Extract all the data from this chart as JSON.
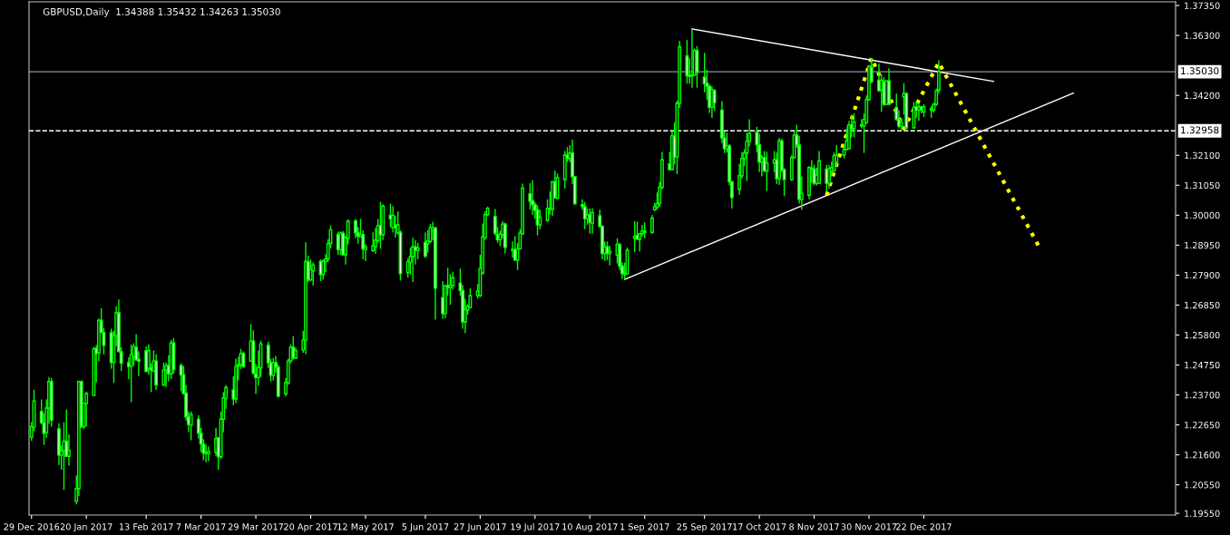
{
  "chart_data": {
    "type": "candlestick",
    "title": "GBPUSD,Daily  1.34388 1.35432 1.34263 1.35030",
    "color": "#00ff00",
    "x": [
      "2016-12-29",
      "2016-12-30",
      "2017-01-02",
      "2017-01-03",
      "2017-01-04",
      "2017-01-05",
      "2017-01-06",
      "2017-01-09",
      "2017-01-10",
      "2017-01-11",
      "2017-01-12",
      "2017-01-13",
      "2017-01-16",
      "2017-01-17",
      "2017-01-18",
      "2017-01-19",
      "2017-01-20",
      "2017-01-23",
      "2017-01-24",
      "2017-01-25",
      "2017-01-26",
      "2017-01-27",
      "2017-01-30",
      "2017-01-31",
      "2017-02-01",
      "2017-02-02",
      "2017-02-03",
      "2017-02-06",
      "2017-02-07",
      "2017-02-08",
      "2017-02-09",
      "2017-02-10",
      "2017-02-13",
      "2017-02-14",
      "2017-02-15",
      "2017-02-16",
      "2017-02-17",
      "2017-02-20",
      "2017-02-21",
      "2017-02-22",
      "2017-02-23",
      "2017-02-24",
      "2017-02-27",
      "2017-02-28",
      "2017-03-01",
      "2017-03-02",
      "2017-03-03",
      "2017-03-06",
      "2017-03-07",
      "2017-03-08",
      "2017-03-09",
      "2017-03-10",
      "2017-03-13",
      "2017-03-14",
      "2017-03-15",
      "2017-03-16",
      "2017-03-17",
      "2017-03-20",
      "2017-03-21",
      "2017-03-22",
      "2017-03-23",
      "2017-03-24",
      "2017-03-27",
      "2017-03-28",
      "2017-03-29",
      "2017-03-30",
      "2017-03-31",
      "2017-04-03",
      "2017-04-04",
      "2017-04-05",
      "2017-04-06",
      "2017-04-07",
      "2017-04-10",
      "2017-04-11",
      "2017-04-12",
      "2017-04-13",
      "2017-04-14",
      "2017-04-17",
      "2017-04-18",
      "2017-04-19",
      "2017-04-20",
      "2017-04-21",
      "2017-04-24",
      "2017-04-25",
      "2017-04-26",
      "2017-04-27",
      "2017-04-28",
      "2017-05-01",
      "2017-05-02",
      "2017-05-03",
      "2017-05-04",
      "2017-05-05",
      "2017-05-08",
      "2017-05-09",
      "2017-05-10",
      "2017-05-11",
      "2017-05-12",
      "2017-05-15",
      "2017-05-16",
      "2017-05-17",
      "2017-05-18",
      "2017-05-19",
      "2017-05-22",
      "2017-05-23",
      "2017-05-24",
      "2017-05-25",
      "2017-05-26",
      "2017-05-29",
      "2017-05-30",
      "2017-05-31",
      "2017-06-01",
      "2017-06-02",
      "2017-06-05",
      "2017-06-06",
      "2017-06-07",
      "2017-06-08",
      "2017-06-09",
      "2017-06-12",
      "2017-06-13",
      "2017-06-14",
      "2017-06-15",
      "2017-06-16",
      "2017-06-19",
      "2017-06-20",
      "2017-06-21",
      "2017-06-22",
      "2017-06-23",
      "2017-06-26",
      "2017-06-27",
      "2017-06-28",
      "2017-06-29",
      "2017-06-30",
      "2017-07-03",
      "2017-07-04",
      "2017-07-05",
      "2017-07-06",
      "2017-07-07",
      "2017-07-10",
      "2017-07-11",
      "2017-07-12",
      "2017-07-13",
      "2017-07-14",
      "2017-07-17",
      "2017-07-18",
      "2017-07-19",
      "2017-07-20",
      "2017-07-21",
      "2017-07-24",
      "2017-07-25",
      "2017-07-26",
      "2017-07-27",
      "2017-07-28",
      "2017-07-31",
      "2017-08-01",
      "2017-08-02",
      "2017-08-03",
      "2017-08-04",
      "2017-08-07",
      "2017-08-08",
      "2017-08-09",
      "2017-08-10",
      "2017-08-11",
      "2017-08-14",
      "2017-08-15",
      "2017-08-16",
      "2017-08-17",
      "2017-08-18",
      "2017-08-21",
      "2017-08-22",
      "2017-08-23",
      "2017-08-24",
      "2017-08-25",
      "2017-08-28",
      "2017-08-29",
      "2017-08-30",
      "2017-08-31",
      "2017-09-01",
      "2017-09-04",
      "2017-09-05",
      "2017-09-06",
      "2017-09-07",
      "2017-09-08",
      "2017-09-11",
      "2017-09-12",
      "2017-09-13",
      "2017-09-14",
      "2017-09-15",
      "2017-09-18",
      "2017-09-19",
      "2017-09-20",
      "2017-09-21",
      "2017-09-22",
      "2017-09-25",
      "2017-09-26",
      "2017-09-27",
      "2017-09-28",
      "2017-09-29",
      "2017-10-02",
      "2017-10-03",
      "2017-10-04",
      "2017-10-05",
      "2017-10-06",
      "2017-10-09",
      "2017-10-10",
      "2017-10-11",
      "2017-10-12",
      "2017-10-13",
      "2017-10-16",
      "2017-10-17",
      "2017-10-18",
      "2017-10-19",
      "2017-10-20",
      "2017-10-23",
      "2017-10-24",
      "2017-10-25",
      "2017-10-26",
      "2017-10-27",
      "2017-10-30",
      "2017-10-31",
      "2017-11-01",
      "2017-11-02",
      "2017-11-03",
      "2017-11-06",
      "2017-11-07",
      "2017-11-08",
      "2017-11-09",
      "2017-11-10",
      "2017-11-13",
      "2017-11-14",
      "2017-11-15",
      "2017-11-16",
      "2017-11-17",
      "2017-11-20",
      "2017-11-21",
      "2017-11-22",
      "2017-11-23",
      "2017-11-24",
      "2017-11-27",
      "2017-11-28",
      "2017-11-29",
      "2017-11-30",
      "2017-12-01",
      "2017-12-04",
      "2017-12-05",
      "2017-12-06",
      "2017-12-07",
      "2017-12-08",
      "2017-12-11",
      "2017-12-12",
      "2017-12-13",
      "2017-12-14",
      "2017-12-15",
      "2017-12-18",
      "2017-12-19",
      "2017-12-20",
      "2017-12-21",
      "2017-12-22",
      "2017-12-25",
      "2017-12-26",
      "2017-12-27",
      "2017-12-28"
    ],
    "ohlc": [
      [
        1.2222,
        1.2275,
        1.2209,
        1.2259
      ],
      [
        1.2257,
        1.2388,
        1.2243,
        1.2349
      ],
      [
        1.2312,
        1.2354,
        1.2267,
        1.2273
      ],
      [
        1.2273,
        1.2306,
        1.2195,
        1.2236
      ],
      [
        1.2238,
        1.2354,
        1.2219,
        1.2324
      ],
      [
        1.2324,
        1.2433,
        1.2269,
        1.2417
      ],
      [
        1.2417,
        1.243,
        1.2259,
        1.2282
      ],
      [
        1.2251,
        1.2271,
        1.2124,
        1.2159
      ],
      [
        1.2159,
        1.2192,
        1.2108,
        1.2174
      ],
      [
        1.2174,
        1.2275,
        1.2037,
        1.2208
      ],
      [
        1.2208,
        1.2319,
        1.2153,
        1.2155
      ],
      [
        1.2155,
        1.2232,
        1.2122,
        1.2176
      ],
      [
        1.1997,
        1.2088,
        1.1986,
        1.2042
      ],
      [
        1.2042,
        1.242,
        1.2016,
        1.2417
      ],
      [
        1.2417,
        1.242,
        1.2254,
        1.2259
      ],
      [
        1.2259,
        1.2343,
        1.225,
        1.2341
      ],
      [
        1.234,
        1.2382,
        1.2259,
        1.2375
      ],
      [
        1.2368,
        1.2539,
        1.2366,
        1.2531
      ],
      [
        1.2533,
        1.2546,
        1.2415,
        1.2515
      ],
      [
        1.2518,
        1.2639,
        1.2488,
        1.2631
      ],
      [
        1.2632,
        1.2674,
        1.2586,
        1.2589
      ],
      [
        1.2589,
        1.2604,
        1.2512,
        1.2544
      ],
      [
        1.2588,
        1.2602,
        1.2462,
        1.2484
      ],
      [
        1.2484,
        1.2595,
        1.2412,
        1.2578
      ],
      [
        1.2578,
        1.2681,
        1.2541,
        1.2658
      ],
      [
        1.2658,
        1.2705,
        1.2518,
        1.2523
      ],
      [
        1.2521,
        1.2537,
        1.2454,
        1.2481
      ],
      [
        1.2483,
        1.2502,
        1.2425,
        1.247
      ],
      [
        1.247,
        1.2547,
        1.2345,
        1.2512
      ],
      [
        1.2504,
        1.2551,
        1.2472,
        1.2539
      ],
      [
        1.2537,
        1.2583,
        1.2489,
        1.2493
      ],
      [
        1.2495,
        1.2523,
        1.2436,
        1.2488
      ],
      [
        1.2525,
        1.2541,
        1.245,
        1.2453
      ],
      [
        1.2463,
        1.2547,
        1.244,
        1.2525
      ],
      [
        1.2465,
        1.2481,
        1.238,
        1.2457
      ],
      [
        1.2454,
        1.2526,
        1.2452,
        1.2489
      ],
      [
        1.2489,
        1.2512,
        1.2388,
        1.2405
      ],
      [
        1.2405,
        1.2484,
        1.2401,
        1.2457
      ],
      [
        1.2457,
        1.2484,
        1.2398,
        1.2473
      ],
      [
        1.2473,
        1.2509,
        1.2417,
        1.2444
      ],
      [
        1.2444,
        1.2563,
        1.2426,
        1.2552
      ],
      [
        1.2552,
        1.257,
        1.2444,
        1.2459
      ],
      [
        1.2473,
        1.2481,
        1.2383,
        1.244
      ],
      [
        1.2441,
        1.2472,
        1.2373,
        1.2375
      ],
      [
        1.2377,
        1.2405,
        1.228,
        1.2293
      ],
      [
        1.2293,
        1.2312,
        1.224,
        1.2267
      ],
      [
        1.2264,
        1.2312,
        1.2211,
        1.2301
      ],
      [
        1.2285,
        1.2299,
        1.2217,
        1.2236
      ],
      [
        1.2236,
        1.2254,
        1.2169,
        1.2198
      ],
      [
        1.2198,
        1.2215,
        1.2141,
        1.2166
      ],
      [
        1.2168,
        1.2196,
        1.2134,
        1.2164
      ],
      [
        1.2164,
        1.219,
        1.2138,
        1.2172
      ],
      [
        1.2169,
        1.2254,
        1.2156,
        1.2217
      ],
      [
        1.222,
        1.2222,
        1.2108,
        1.2153
      ],
      [
        1.2153,
        1.2312,
        1.2146,
        1.2285
      ],
      [
        1.2285,
        1.238,
        1.224,
        1.2359
      ],
      [
        1.2357,
        1.2405,
        1.2322,
        1.2396
      ],
      [
        1.2388,
        1.2436,
        1.2333,
        1.2356
      ],
      [
        1.2356,
        1.2497,
        1.2341,
        1.247
      ],
      [
        1.2472,
        1.2504,
        1.2421,
        1.2476
      ],
      [
        1.2476,
        1.2531,
        1.246,
        1.2515
      ],
      [
        1.2515,
        1.2523,
        1.2465,
        1.247
      ],
      [
        1.2488,
        1.2618,
        1.2486,
        1.2559
      ],
      [
        1.2559,
        1.2597,
        1.2441,
        1.2447
      ],
      [
        1.2445,
        1.2478,
        1.2373,
        1.2431
      ],
      [
        1.2431,
        1.2525,
        1.2402,
        1.2467
      ],
      [
        1.2465,
        1.256,
        1.2433,
        1.2549
      ],
      [
        1.2544,
        1.2557,
        1.2465,
        1.2483
      ],
      [
        1.2483,
        1.2497,
        1.2417,
        1.2439
      ],
      [
        1.2439,
        1.25,
        1.2421,
        1.2483
      ],
      [
        1.2483,
        1.2507,
        1.2449,
        1.2467
      ],
      [
        1.2467,
        1.2476,
        1.2362,
        1.2365
      ],
      [
        1.2374,
        1.243,
        1.2365,
        1.2414
      ],
      [
        1.2412,
        1.2497,
        1.2405,
        1.2489
      ],
      [
        1.2489,
        1.2547,
        1.2481,
        1.2537
      ],
      [
        1.2537,
        1.2576,
        1.2493,
        1.25
      ],
      [
        1.2499,
        1.2536,
        1.2497,
        1.2525
      ],
      [
        1.2528,
        1.2595,
        1.2518,
        1.2562
      ],
      [
        1.2562,
        1.2905,
        1.2512,
        1.2838
      ],
      [
        1.2837,
        1.2858,
        1.2766,
        1.2774
      ],
      [
        1.2774,
        1.2845,
        1.2768,
        1.281
      ],
      [
        1.2805,
        1.2835,
        1.2753,
        1.2826
      ],
      [
        1.2838,
        1.2845,
        1.2769,
        1.2792
      ],
      [
        1.2792,
        1.2845,
        1.2774,
        1.2838
      ],
      [
        1.2837,
        1.2863,
        1.2801,
        1.2847
      ],
      [
        1.2847,
        1.2916,
        1.2837,
        1.2901
      ],
      [
        1.2901,
        1.2964,
        1.2884,
        1.2949
      ],
      [
        1.2932,
        1.2943,
        1.2861,
        1.288
      ],
      [
        1.288,
        1.2943,
        1.2861,
        1.2937
      ],
      [
        1.2937,
        1.2945,
        1.2858,
        1.2861
      ],
      [
        1.2861,
        1.2929,
        1.2827,
        1.2921
      ],
      [
        1.2919,
        1.2985,
        1.2898,
        1.2979
      ],
      [
        1.298,
        1.2987,
        1.2919,
        1.2938
      ],
      [
        1.2938,
        1.2959,
        1.29,
        1.2927
      ],
      [
        1.2924,
        1.2987,
        1.2921,
        1.2932
      ],
      [
        1.2932,
        1.2947,
        1.2845,
        1.2882
      ],
      [
        1.288,
        1.2898,
        1.2839,
        1.2889
      ],
      [
        1.2876,
        1.294,
        1.2871,
        1.2892
      ],
      [
        1.2889,
        1.2956,
        1.2864,
        1.2913
      ],
      [
        1.2911,
        1.2987,
        1.2903,
        1.2964
      ],
      [
        1.2964,
        1.3047,
        1.2882,
        1.2931
      ],
      [
        1.2931,
        1.3038,
        1.2913,
        1.3032
      ],
      [
        1.3,
        1.304,
        1.2958,
        1.2987
      ],
      [
        1.2956,
        1.3032,
        1.294,
        1.3
      ],
      [
        1.2966,
        1.2998,
        1.2922,
        1.2956
      ],
      [
        1.2938,
        1.3013,
        1.2932,
        1.2966
      ],
      [
        1.294,
        1.2947,
        1.2771,
        1.2795
      ],
      [
        1.2799,
        1.2848,
        1.2781,
        1.2837
      ],
      [
        1.2834,
        1.2887,
        1.2792,
        1.2855
      ],
      [
        1.2855,
        1.2921,
        1.2766,
        1.2889
      ],
      [
        1.2889,
        1.2913,
        1.2827,
        1.2876
      ],
      [
        1.2876,
        1.2903,
        1.2845,
        1.2885
      ],
      [
        1.2905,
        1.294,
        1.285,
        1.2857
      ],
      [
        1.29,
        1.2947,
        1.2869,
        1.291
      ],
      [
        1.2908,
        1.2969,
        1.2903,
        1.2956
      ],
      [
        1.2947,
        1.2977,
        1.2913,
        1.2956
      ],
      [
        1.2956,
        1.2958,
        1.2634,
        1.2744
      ],
      [
        1.2711,
        1.2769,
        1.2637,
        1.2655
      ],
      [
        1.2655,
        1.2755,
        1.2639,
        1.2753
      ],
      [
        1.2753,
        1.2816,
        1.2718,
        1.2747
      ],
      [
        1.2747,
        1.2794,
        1.2686,
        1.2755
      ],
      [
        1.2753,
        1.2802,
        1.2739,
        1.2781
      ],
      [
        1.2762,
        1.2813,
        1.2718,
        1.2736
      ],
      [
        1.2736,
        1.2755,
        1.2602,
        1.2626
      ],
      [
        1.2626,
        1.2707,
        1.2586,
        1.267
      ],
      [
        1.2668,
        1.2688,
        1.2651,
        1.2681
      ],
      [
        1.2676,
        1.2744,
        1.2673,
        1.2718
      ],
      [
        1.2718,
        1.2759,
        1.2707,
        1.2734
      ],
      [
        1.2718,
        1.2861,
        1.2713,
        1.2813
      ],
      [
        1.2797,
        1.2971,
        1.2792,
        1.2924
      ],
      [
        1.2922,
        1.3014,
        1.2914,
        1.3002
      ],
      [
        1.3002,
        1.303,
        1.2998,
        1.3024
      ],
      [
        1.2996,
        1.3022,
        1.2929,
        1.2937
      ],
      [
        1.2933,
        1.2959,
        1.2903,
        1.2914
      ],
      [
        1.2914,
        1.2945,
        1.2892,
        1.2933
      ],
      [
        1.2932,
        1.298,
        1.2919,
        1.2969
      ],
      [
        1.2969,
        1.2974,
        1.2866,
        1.2887
      ],
      [
        1.288,
        1.2908,
        1.2852,
        1.2877
      ],
      [
        1.288,
        1.2926,
        1.284,
        1.2843
      ],
      [
        1.2843,
        1.2903,
        1.2808,
        1.2882
      ],
      [
        1.2882,
        1.2951,
        1.288,
        1.2937
      ],
      [
        1.2935,
        1.3111,
        1.2932,
        1.3095
      ],
      [
        1.3075,
        1.3112,
        1.3019,
        1.3049
      ],
      [
        1.3051,
        1.3123,
        1.3,
        1.3037
      ],
      [
        1.3037,
        1.3046,
        1.2988,
        1.3017
      ],
      [
        1.3019,
        1.3035,
        1.2929,
        1.2966
      ],
      [
        1.2966,
        1.3019,
        1.2951,
        1.2993
      ],
      [
        1.2982,
        1.3056,
        1.2977,
        1.3024
      ],
      [
        1.3024,
        1.3083,
        1.3003,
        1.3021
      ],
      [
        1.3021,
        1.312,
        1.2998,
        1.3117
      ],
      [
        1.3117,
        1.3156,
        1.3059,
        1.3061
      ],
      [
        1.3059,
        1.3146,
        1.3056,
        1.3132
      ],
      [
        1.3125,
        1.3225,
        1.3093,
        1.3211
      ],
      [
        1.3211,
        1.3239,
        1.3186,
        1.3199
      ],
      [
        1.3199,
        1.3246,
        1.3186,
        1.3218
      ],
      [
        1.3218,
        1.3265,
        1.3109,
        1.3135
      ],
      [
        1.3135,
        1.3137,
        1.3038,
        1.304
      ],
      [
        1.3037,
        1.3056,
        1.3019,
        1.303
      ],
      [
        1.303,
        1.3046,
        1.2951,
        1.2988
      ],
      [
        1.2988,
        1.3024,
        1.2966,
        1.3001
      ],
      [
        1.3002,
        1.3024,
        1.2935,
        1.2975
      ],
      [
        1.2972,
        1.3024,
        1.2935,
        1.3009
      ],
      [
        1.2998,
        1.3019,
        1.2956,
        1.2961
      ],
      [
        1.2961,
        1.2966,
        1.2845,
        1.2866
      ],
      [
        1.2866,
        1.2908,
        1.284,
        1.2889
      ],
      [
        1.2889,
        1.2908,
        1.2842,
        1.2866
      ],
      [
        1.2866,
        1.2892,
        1.2824,
        1.2873
      ],
      [
        1.2861,
        1.2919,
        1.2831,
        1.2898
      ],
      [
        1.2896,
        1.2903,
        1.2808,
        1.2821
      ],
      [
        1.2822,
        1.2834,
        1.2776,
        1.2795
      ],
      [
        1.2792,
        1.2834,
        1.2776,
        1.2797
      ],
      [
        1.2795,
        1.2887,
        1.2792,
        1.2877
      ],
      [
        1.2919,
        1.2979,
        1.2871,
        1.2926
      ],
      [
        1.2929,
        1.2977,
        1.2914,
        1.2916
      ],
      [
        1.2916,
        1.2937,
        1.2873,
        1.2935
      ],
      [
        1.2935,
        1.2965,
        1.2925,
        1.2945
      ],
      [
        1.2945,
        1.2975,
        1.292,
        1.294
      ],
      [
        1.294,
        1.3,
        1.2935,
        1.299
      ],
      [
        1.3019,
        1.3043,
        1.3014,
        1.303
      ],
      [
        1.3028,
        1.308,
        1.3019,
        1.3041
      ],
      [
        1.3041,
        1.3117,
        1.303,
        1.3099
      ],
      [
        1.3097,
        1.3222,
        1.3091,
        1.3194
      ],
      [
        1.318,
        1.3222,
        1.3157,
        1.316
      ],
      [
        1.316,
        1.3294,
        1.3157,
        1.3278
      ],
      [
        1.3278,
        1.3326,
        1.3178,
        1.3204
      ],
      [
        1.3204,
        1.3402,
        1.3144,
        1.3392
      ],
      [
        1.3392,
        1.3611,
        1.3376,
        1.359
      ],
      [
        1.3558,
        1.3614,
        1.3461,
        1.3489
      ],
      [
        1.3491,
        1.355,
        1.3461,
        1.3486
      ],
      [
        1.3487,
        1.3653,
        1.3447,
        1.3492
      ],
      [
        1.3491,
        1.3584,
        1.3489,
        1.3577
      ],
      [
        1.3577,
        1.3593,
        1.3447,
        1.35
      ],
      [
        1.3484,
        1.3569,
        1.3431,
        1.3461
      ],
      [
        1.3463,
        1.351,
        1.3405,
        1.3452
      ],
      [
        1.3452,
        1.3458,
        1.3359,
        1.3378
      ],
      [
        1.3378,
        1.3452,
        1.3341,
        1.344
      ],
      [
        1.3437,
        1.3442,
        1.3366,
        1.3394
      ],
      [
        1.3368,
        1.34,
        1.3252,
        1.3271
      ],
      [
        1.3271,
        1.3294,
        1.3218,
        1.3234
      ],
      [
        1.3233,
        1.3289,
        1.322,
        1.3243
      ],
      [
        1.3243,
        1.3249,
        1.3104,
        1.3117
      ],
      [
        1.3117,
        1.312,
        1.3023,
        1.3062
      ],
      [
        1.3091,
        1.3181,
        1.3072,
        1.3139
      ],
      [
        1.3138,
        1.3222,
        1.3128,
        1.3199
      ],
      [
        1.3199,
        1.3231,
        1.3173,
        1.3218
      ],
      [
        1.3218,
        1.3289,
        1.312,
        1.3259
      ],
      [
        1.3259,
        1.3336,
        1.3241,
        1.3286
      ],
      [
        1.3291,
        1.331,
        1.322,
        1.3247
      ],
      [
        1.3247,
        1.3286,
        1.3151,
        1.3186
      ],
      [
        1.3186,
        1.3212,
        1.3136,
        1.3202
      ],
      [
        1.3202,
        1.3225,
        1.3151,
        1.3155
      ],
      [
        1.3155,
        1.3222,
        1.3085,
        1.3183
      ],
      [
        1.3183,
        1.3225,
        1.3151,
        1.3194
      ],
      [
        1.3194,
        1.322,
        1.3109,
        1.3128
      ],
      [
        1.3128,
        1.3271,
        1.3106,
        1.326
      ],
      [
        1.326,
        1.3268,
        1.3151,
        1.3157
      ],
      [
        1.3159,
        1.3165,
        1.3067,
        1.3125
      ],
      [
        1.3125,
        1.3212,
        1.312,
        1.3202
      ],
      [
        1.3202,
        1.3294,
        1.3199,
        1.3281
      ],
      [
        1.3281,
        1.3317,
        1.3236,
        1.3246
      ],
      [
        1.3246,
        1.3278,
        1.3041,
        1.3056
      ],
      [
        1.3056,
        1.3136,
        1.3019,
        1.3077
      ],
      [
        1.307,
        1.3172,
        1.3056,
        1.3167
      ],
      [
        1.3165,
        1.3193,
        1.3114,
        1.3161
      ],
      [
        1.3162,
        1.3177,
        1.3104,
        1.3112
      ],
      [
        1.3112,
        1.3167,
        1.3104,
        1.3141
      ],
      [
        1.3112,
        1.3225,
        1.3109,
        1.319
      ],
      [
        1.3162,
        1.3177,
        1.3082,
        1.3112
      ],
      [
        1.3112,
        1.3177,
        1.3093,
        1.3162
      ],
      [
        1.3154,
        1.3188,
        1.3135,
        1.3167
      ],
      [
        1.3156,
        1.322,
        1.3151,
        1.3209
      ],
      [
        1.3186,
        1.3246,
        1.3172,
        1.3211
      ],
      [
        1.3211,
        1.3251,
        1.3199,
        1.323
      ],
      [
        1.323,
        1.3304,
        1.3228,
        1.326
      ],
      [
        1.3233,
        1.3331,
        1.3232,
        1.3317
      ],
      [
        1.3317,
        1.3352,
        1.3273,
        1.3302
      ],
      [
        1.3304,
        1.3357,
        1.3273,
        1.3327
      ],
      [
        1.3317,
        1.3336,
        1.3304,
        1.3313
      ],
      [
        1.3313,
        1.3357,
        1.3218,
        1.3336
      ],
      [
        1.3325,
        1.342,
        1.332,
        1.3405
      ],
      [
        1.3405,
        1.3526,
        1.3401,
        1.3523
      ],
      [
        1.3519,
        1.3552,
        1.3463,
        1.3468
      ],
      [
        1.3473,
        1.3531,
        1.3433,
        1.3436
      ],
      [
        1.3439,
        1.3494,
        1.3362,
        1.3473
      ],
      [
        1.3468,
        1.3484,
        1.3383,
        1.3389
      ],
      [
        1.3389,
        1.3473,
        1.3387,
        1.3471
      ],
      [
        1.3471,
        1.3515,
        1.3387,
        1.3389
      ],
      [
        1.3378,
        1.3426,
        1.3331,
        1.3336
      ],
      [
        1.3336,
        1.3368,
        1.3304,
        1.3312
      ],
      [
        1.3312,
        1.3341,
        1.3299,
        1.3325
      ],
      [
        1.3415,
        1.3463,
        1.3352,
        1.3426
      ],
      [
        1.3426,
        1.3431,
        1.3299,
        1.3306
      ],
      [
        1.3306,
        1.3397,
        1.3304,
        1.3378
      ],
      [
        1.338,
        1.3399,
        1.3341,
        1.3368
      ],
      [
        1.3368,
        1.3394,
        1.3331,
        1.338
      ],
      [
        1.338,
        1.3383,
        1.3357,
        1.337
      ],
      [
        1.3362,
        1.3389,
        1.3344,
        1.338
      ],
      [
        1.3373,
        1.3383,
        1.3341,
        1.3368
      ],
      [
        1.3368,
        1.3394,
        1.3359,
        1.3389
      ],
      [
        1.3389,
        1.3444,
        1.3383,
        1.3436
      ],
      [
        1.34388,
        1.35432,
        1.34263,
        1.3503
      ]
    ],
    "series": [
      {
        "type": "line",
        "color": "#ffffff",
        "line_style": "solid",
        "x": [
          "2017-09-20",
          "2018-01-19"
        ],
        "values": [
          1.3653,
          1.3469
        ]
      },
      {
        "type": "line",
        "color": "#ffffff",
        "line_style": "solid",
        "x": [
          "2017-08-24",
          "2018-02-20"
        ],
        "values": [
          1.2775,
          1.3428
        ]
      },
      {
        "type": "line",
        "color": "#ffff00",
        "line_style": "dotted",
        "x": [
          "2017-11-13",
          "2017-12-01",
          "2017-12-14",
          "2017-12-28",
          "2018-02-06"
        ],
        "values": [
          1.307,
          1.3551,
          1.3304,
          1.3535,
          1.2893
        ]
      }
    ],
    "ref_lines": [
      {
        "axis": "y",
        "value": 1.3503,
        "label": "1.35030",
        "color": "#8494ab",
        "line_style": "solid"
      },
      {
        "axis": "y",
        "value": 1.32958,
        "label": "1.32958",
        "color": "#ffffff",
        "line_style": "dashed"
      }
    ],
    "xlim": [
      "2016-12-28",
      "2018-04-02"
    ],
    "xticks": [
      {
        "value": "2016-12-29",
        "label": "29 Dec 2016"
      },
      {
        "value": "2017-01-20",
        "label": "20 Jan 2017"
      },
      {
        "value": "2017-02-13",
        "label": "13 Feb 2017"
      },
      {
        "value": "2017-03-07",
        "label": "7 Mar 2017"
      },
      {
        "value": "2017-03-29",
        "label": "29 Mar 2017"
      },
      {
        "value": "2017-04-20",
        "label": "20 Apr 2017"
      },
      {
        "value": "2017-05-12",
        "label": "12 May 2017"
      },
      {
        "value": "2017-06-05",
        "label": "5 Jun 2017"
      },
      {
        "value": "2017-06-27",
        "label": "27 Jun 2017"
      },
      {
        "value": "2017-07-19",
        "label": "19 Jul 2017"
      },
      {
        "value": "2017-08-10",
        "label": "10 Aug 2017"
      },
      {
        "value": "2017-09-01",
        "label": "1 Sep 2017"
      },
      {
        "value": "2017-09-25",
        "label": "25 Sep 2017"
      },
      {
        "value": "2017-10-17",
        "label": "17 Oct 2017"
      },
      {
        "value": "2017-11-08",
        "label": "8 Nov 2017"
      },
      {
        "value": "2017-11-30",
        "label": "30 Nov 2017"
      },
      {
        "value": "2017-12-22",
        "label": "22 Dec 2017"
      }
    ],
    "ylim": [
      1.1949,
      1.3748
    ],
    "yticks": [
      {
        "value": 1.3735,
        "label": "1.37350"
      },
      {
        "value": 1.363,
        "label": "1.36300"
      },
      {
        "value": 1.342,
        "label": "1.34200"
      },
      {
        "value": 1.321,
        "label": "1.32100"
      },
      {
        "value": 1.3105,
        "label": "1.31050"
      },
      {
        "value": 1.3,
        "label": "1.30000"
      },
      {
        "value": 1.2895,
        "label": "1.28950"
      },
      {
        "value": 1.279,
        "label": "1.27900"
      },
      {
        "value": 1.2685,
        "label": "1.26850"
      },
      {
        "value": 1.258,
        "label": "1.25800"
      },
      {
        "value": 1.2475,
        "label": "1.24750"
      },
      {
        "value": 1.237,
        "label": "1.23700"
      },
      {
        "value": 1.2265,
        "label": "1.22650"
      },
      {
        "value": 1.216,
        "label": "1.21600"
      },
      {
        "value": 1.2055,
        "label": "1.20550"
      },
      {
        "value": 1.1955,
        "label": "1.19550"
      }
    ]
  }
}
